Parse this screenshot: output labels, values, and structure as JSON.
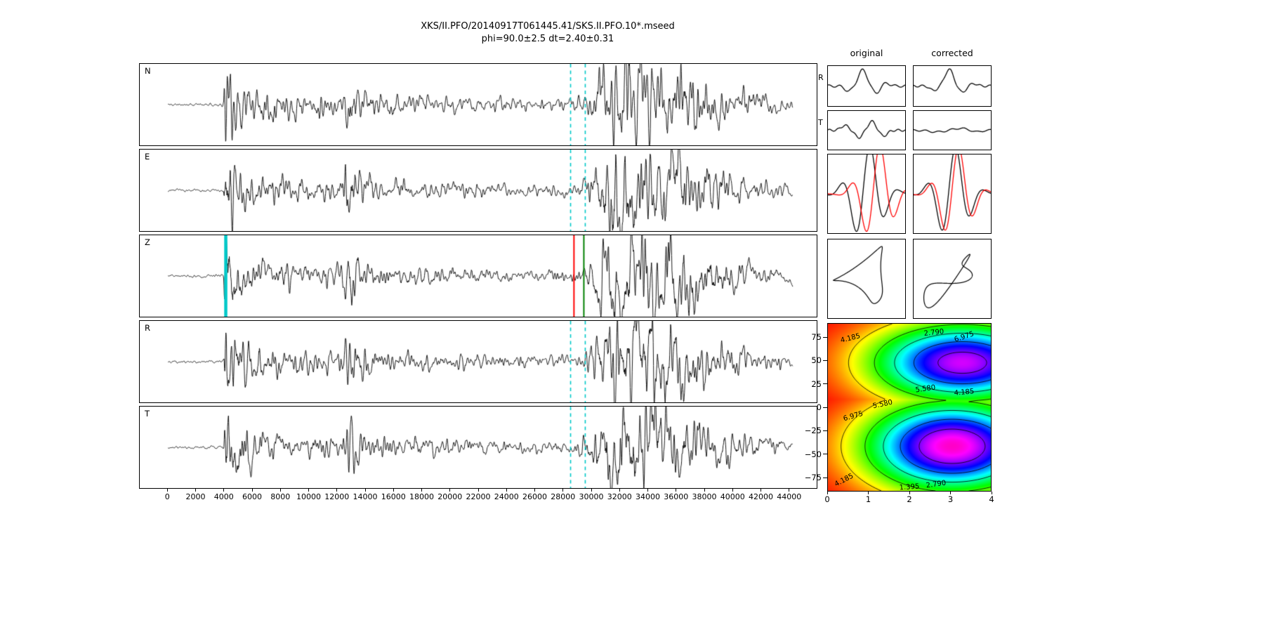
{
  "header": {
    "title": "XKS/II.PFO/20140917T061445.41/SKS.II.PFO.10*.mseed",
    "subtitle": "phi=90.0±2.5 dt=2.40±0.31"
  },
  "chart_data": {
    "type": "line",
    "description": "Shear-wave splitting measurement figure: five seismogram traces (N,E,Z,R,T) with picked analysis window, original vs corrected waveform comparison panels with particle motion, and a phi/dt error-surface contour map.",
    "seismogram": {
      "xlim": [
        -2000,
        46000
      ],
      "xticks": [
        0,
        2000,
        4000,
        6000,
        8000,
        10000,
        12000,
        14000,
        16000,
        18000,
        20000,
        22000,
        24000,
        26000,
        28000,
        30000,
        32000,
        34000,
        36000,
        38000,
        40000,
        42000,
        44000
      ],
      "window": {
        "start": 28550,
        "end": 29590
      },
      "trace_color": "#000000",
      "envelope": [
        [
          -2000,
          0.8
        ],
        [
          1500,
          1.1
        ],
        [
          3800,
          1.4
        ],
        [
          3950,
          4
        ],
        [
          4050,
          46
        ],
        [
          4300,
          34
        ],
        [
          5000,
          22
        ],
        [
          6200,
          14
        ],
        [
          8000,
          11
        ],
        [
          10000,
          9
        ],
        [
          12300,
          9
        ],
        [
          12600,
          22
        ],
        [
          13000,
          25
        ],
        [
          13700,
          13
        ],
        [
          15000,
          9
        ],
        [
          17000,
          7.5
        ],
        [
          20000,
          6.5
        ],
        [
          23000,
          5.5
        ],
        [
          26000,
          5
        ],
        [
          28500,
          5
        ],
        [
          29300,
          6
        ],
        [
          29800,
          11
        ],
        [
          30300,
          20
        ],
        [
          31000,
          30
        ],
        [
          31800,
          44
        ],
        [
          32700,
          40
        ],
        [
          34000,
          36
        ],
        [
          35500,
          31
        ],
        [
          37000,
          23
        ],
        [
          38500,
          17
        ],
        [
          40000,
          12
        ],
        [
          41500,
          9
        ],
        [
          43000,
          6.5
        ],
        [
          44300,
          4.5
        ]
      ],
      "lf_envelope": [
        [
          -2000,
          0
        ],
        [
          28800,
          0
        ],
        [
          29600,
          6
        ],
        [
          30500,
          14
        ],
        [
          31500,
          22
        ],
        [
          33000,
          21
        ],
        [
          35000,
          18
        ],
        [
          37000,
          12
        ],
        [
          39000,
          8
        ],
        [
          41000,
          5
        ],
        [
          43000,
          3
        ],
        [
          44300,
          2
        ]
      ],
      "panels": [
        {
          "label": "N",
          "seed": 11,
          "markers": [
            {
              "x": 28550,
              "color": "#00c8c8",
              "dash": true,
              "width": 1.6
            },
            {
              "x": 29590,
              "color": "#00c8c8",
              "dash": true,
              "width": 1.6
            }
          ]
        },
        {
          "label": "E",
          "seed": 23,
          "markers": [
            {
              "x": 28550,
              "color": "#00c8c8",
              "dash": true,
              "width": 1.6
            },
            {
              "x": 29590,
              "color": "#00c8c8",
              "dash": true,
              "width": 1.6
            }
          ]
        },
        {
          "label": "Z",
          "seed": 37,
          "markers": [
            {
              "x": 4100,
              "color": "#00c8c8",
              "dash": false,
              "width": 4.5
            },
            {
              "x": 28790,
              "color": "#ff0000",
              "dash": false,
              "width": 2
            },
            {
              "x": 29490,
              "color": "#008000",
              "dash": false,
              "width": 2
            }
          ]
        },
        {
          "label": "R",
          "seed": 47,
          "markers": [
            {
              "x": 28550,
              "color": "#00c8c8",
              "dash": true,
              "width": 1.6
            },
            {
              "x": 29590,
              "color": "#00c8c8",
              "dash": true,
              "width": 1.6
            }
          ]
        },
        {
          "label": "T",
          "seed": 59,
          "markers": [
            {
              "x": 28550,
              "color": "#00c8c8",
              "dash": true,
              "width": 1.6
            },
            {
              "x": 29590,
              "color": "#00c8c8",
              "dash": true,
              "width": 1.6
            }
          ]
        }
      ]
    },
    "comparison": {
      "col_headers": [
        "original",
        "corrected"
      ],
      "row_labels": [
        "R",
        "T"
      ],
      "red_color": "#ff0000",
      "panels": [
        {
          "id": "R-original",
          "type": "gsum",
          "components": [
            {
              "a": -0.3,
              "c": 0.27,
              "w": 0.07
            },
            {
              "a": 0.95,
              "c": 0.45,
              "w": 0.08
            },
            {
              "a": -0.42,
              "c": 0.62,
              "w": 0.065
            },
            {
              "a": 0.18,
              "c": 0.76,
              "w": 0.06
            }
          ],
          "ripple": [
            0.07,
            7,
            1.0
          ]
        },
        {
          "id": "R-corrected",
          "type": "gsum",
          "components": [
            {
              "a": -0.28,
              "c": 0.26,
              "w": 0.06
            },
            {
              "a": 1.0,
              "c": 0.46,
              "w": 0.075
            },
            {
              "a": -0.38,
              "c": 0.63,
              "w": 0.06
            },
            {
              "a": 0.15,
              "c": 0.78,
              "w": 0.06
            }
          ],
          "ripple": [
            0.06,
            8,
            2.2
          ]
        },
        {
          "id": "T-original",
          "type": "gsum",
          "components": [
            {
              "a": 0.3,
              "c": 0.22,
              "w": 0.07
            },
            {
              "a": -0.45,
              "c": 0.4,
              "w": 0.07
            },
            {
              "a": 0.55,
              "c": 0.57,
              "w": 0.07
            },
            {
              "a": -0.35,
              "c": 0.72,
              "w": 0.07
            }
          ],
          "ripple": [
            0.06,
            9,
            0.4
          ]
        },
        {
          "id": "T-corrected",
          "type": "gsum",
          "components": [
            {
              "a": -0.1,
              "c": 0.3,
              "w": 0.14
            },
            {
              "a": 0.12,
              "c": 0.6,
              "w": 0.12
            },
            {
              "a": -0.1,
              "c": 0.82,
              "w": 0.08
            }
          ],
          "ripple": [
            0.05,
            6,
            2.0
          ]
        },
        {
          "id": "overlay-original",
          "type": "overlay",
          "freq": 2.6,
          "phase": -1.1,
          "amp": 1.5,
          "envw": 0.26,
          "shift": 0.13
        },
        {
          "id": "overlay-corrected",
          "type": "overlay",
          "freq": 2.6,
          "phase": -1.1,
          "amp": 1.45,
          "envw": 0.26,
          "shift": 0.04
        },
        {
          "id": "motion-original",
          "type": "lissa",
          "xh": [
            [
              0.7,
              1,
              0.0
            ],
            [
              0.28,
              2,
              1.2
            ],
            [
              0.12,
              3,
              2.1
            ]
          ],
          "yh": [
            [
              0.75,
              1,
              1.57
            ],
            [
              0.26,
              2,
              0.4
            ],
            [
              0.1,
              3,
              1.1
            ]
          ]
        },
        {
          "id": "motion-corrected",
          "type": "lissa",
          "xh": [
            [
              0.72,
              1,
              0.3
            ],
            [
              0.3,
              2,
              2.3
            ],
            [
              0.1,
              3,
              1.0
            ]
          ],
          "yh": [
            [
              0.62,
              1,
              0.45
            ],
            [
              0.32,
              2,
              0.9
            ],
            [
              0.14,
              3,
              2.0
            ]
          ]
        }
      ]
    },
    "error_surface": {
      "xlim": [
        0,
        4
      ],
      "ylim": [
        -90,
        90
      ],
      "xticks": [
        {
          "v": 0,
          "label": "0"
        },
        {
          "v": 1,
          "label": "1"
        },
        {
          "v": 2,
          "label": "2"
        },
        {
          "v": 3,
          "label": "3"
        },
        {
          "v": 4,
          "label": "4"
        }
      ],
      "yticks": [
        {
          "v": 75,
          "label": "75"
        },
        {
          "v": 50,
          "label": "50"
        },
        {
          "v": 25,
          "label": "25"
        },
        {
          "v": 0,
          "label": "0"
        },
        {
          "v": -25,
          "label": "−25"
        },
        {
          "v": -50,
          "label": "−50"
        },
        {
          "v": -75,
          "label": "−75"
        }
      ],
      "levels": [
        1.395,
        2.79,
        4.185,
        5.58,
        6.975
      ],
      "colormap": "gist_rainbow_r",
      "vmin": 0.2,
      "vmax": 8.6,
      "scale": 8.5,
      "best_fit": {
        "phi": 90.0,
        "phi_err": 2.5,
        "dt": 2.4,
        "dt_err": 0.31
      },
      "minima": [
        {
          "cx": 3.05,
          "cy": -42,
          "wx": 2.1,
          "wy": 48,
          "amp": 0.97
        },
        {
          "cx": 3.3,
          "cy": 48,
          "wx": 2.2,
          "wy": 42,
          "amp": 0.9
        }
      ],
      "contour_labels": [
        {
          "text": "4.185",
          "x": 0.55,
          "y": 74,
          "rot": -14
        },
        {
          "text": "2.790",
          "x": 2.6,
          "y": 80,
          "rot": -6
        },
        {
          "text": "6.975",
          "x": 3.35,
          "y": 76,
          "rot": -18
        },
        {
          "text": "5.580",
          "x": 2.4,
          "y": 20,
          "rot": -8
        },
        {
          "text": "4.185",
          "x": 3.35,
          "y": 16,
          "rot": -5
        },
        {
          "text": "5.580",
          "x": 1.35,
          "y": 3,
          "rot": -12
        },
        {
          "text": "6.975",
          "x": 0.62,
          "y": -10,
          "rot": -16
        },
        {
          "text": "4.185",
          "x": 0.4,
          "y": -79,
          "rot": -28
        },
        {
          "text": "1.395",
          "x": 2.0,
          "y": -86,
          "rot": -4
        },
        {
          "text": "2.790",
          "x": 2.65,
          "y": -83,
          "rot": -8
        }
      ]
    }
  }
}
